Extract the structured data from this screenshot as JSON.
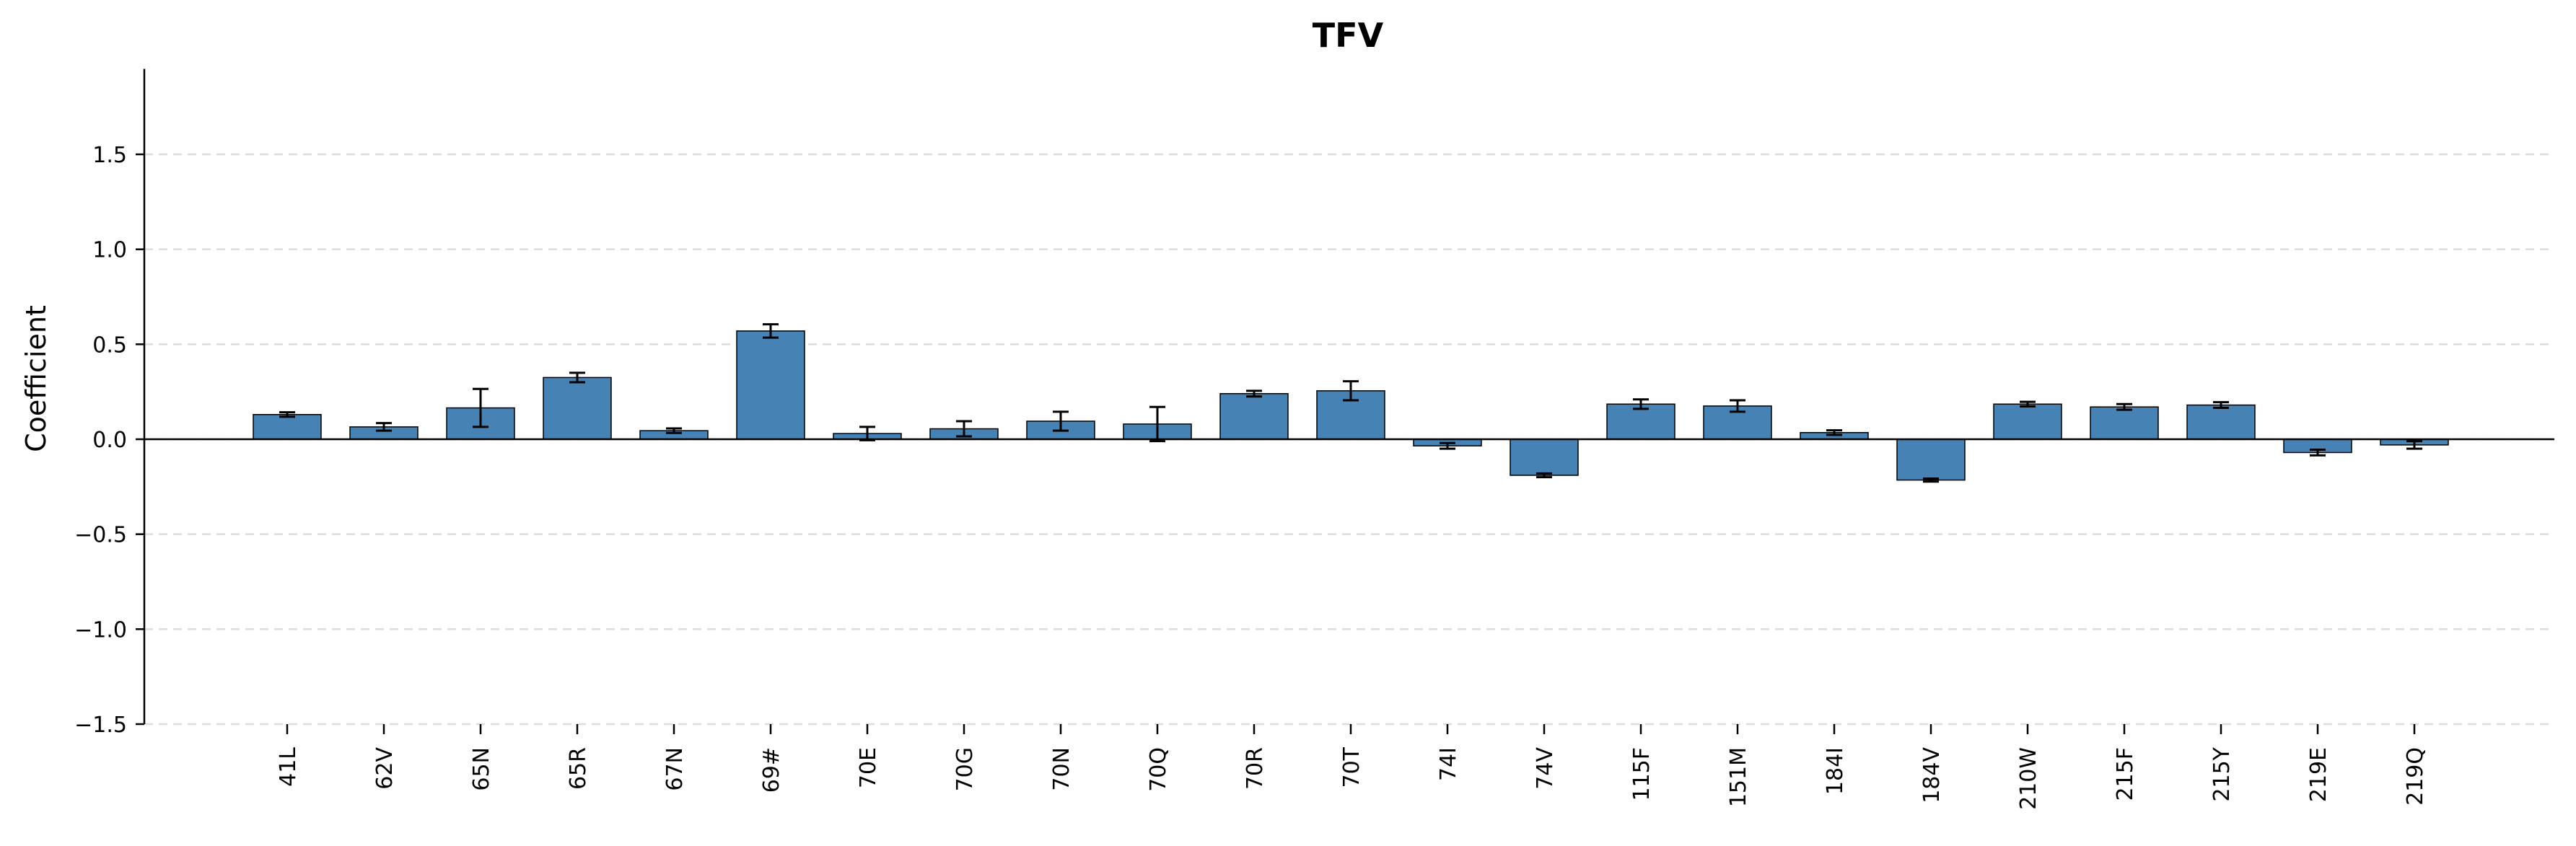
{
  "chart_data": {
    "type": "bar",
    "title": "TFV",
    "xlabel": "",
    "ylabel": "Coefficient",
    "ylim": [
      -1.5,
      1.95
    ],
    "yticks": [
      -1.5,
      -1.0,
      -0.5,
      0.0,
      0.5,
      1.0,
      1.5
    ],
    "ytick_labels": [
      "−1.5",
      "−1.0",
      "−0.5",
      "0.0",
      "0.5",
      "1.0",
      "1.5"
    ],
    "grid": "horizontal dashed",
    "categories": [
      "41L",
      "62V",
      "65N",
      "65R",
      "67N",
      "69#",
      "70E",
      "70G",
      "70N",
      "70Q",
      "70R",
      "70T",
      "74I",
      "74V",
      "115F",
      "151M",
      "184I",
      "184V",
      "210W",
      "215F",
      "215Y",
      "219E",
      "219Q"
    ],
    "values": [
      0.13,
      0.065,
      0.165,
      0.325,
      0.045,
      0.57,
      0.03,
      0.055,
      0.095,
      0.08,
      0.24,
      0.255,
      -0.035,
      -0.19,
      0.185,
      0.175,
      0.035,
      -0.215,
      0.185,
      0.17,
      0.18,
      -0.07,
      -0.03
    ],
    "errors": [
      0.012,
      0.02,
      0.1,
      0.025,
      0.012,
      0.035,
      0.035,
      0.04,
      0.05,
      0.09,
      0.015,
      0.05,
      0.015,
      0.01,
      0.025,
      0.03,
      0.012,
      0.008,
      0.012,
      0.015,
      0.015,
      0.015,
      0.02
    ],
    "colors": {
      "bar": "#4682b4",
      "bar_edge": "#000000",
      "grid": "#dddddd",
      "axis": "#000000"
    }
  }
}
